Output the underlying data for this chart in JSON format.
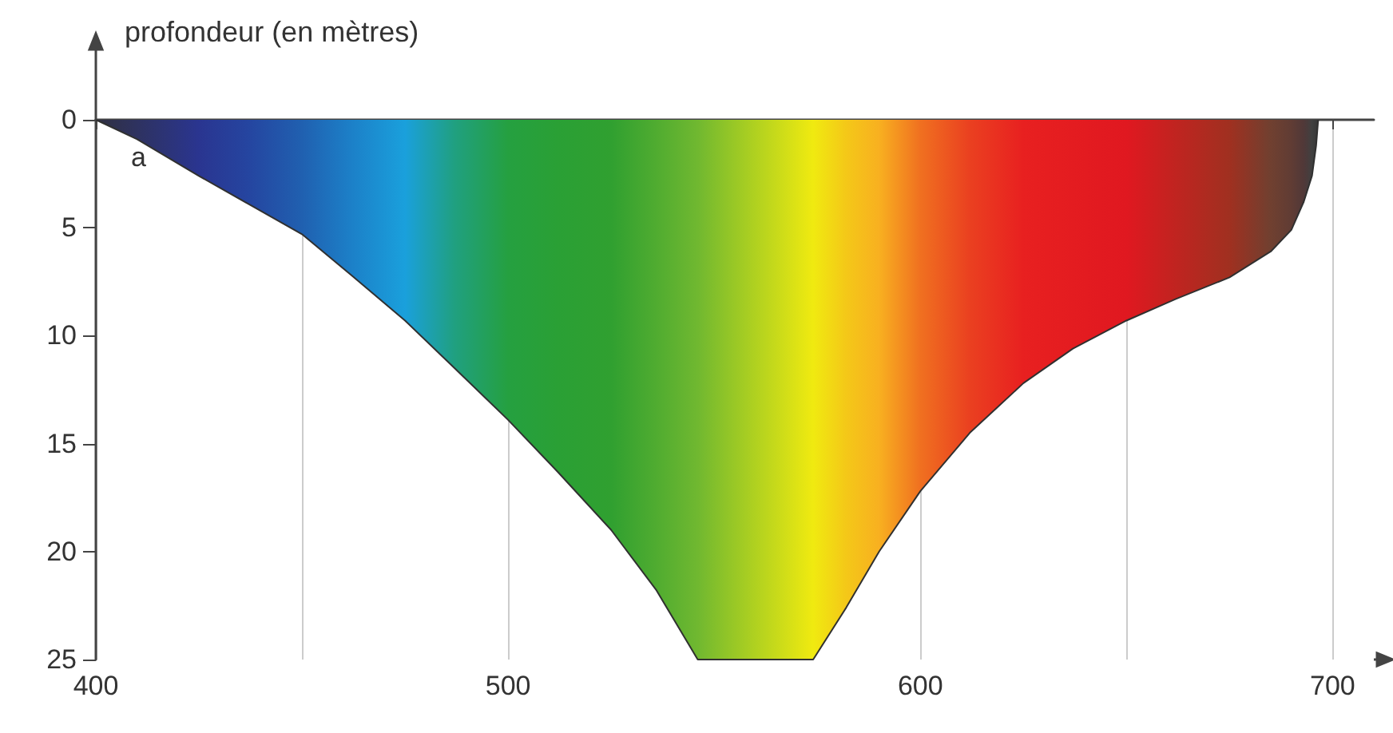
{
  "chart_data": {
    "type": "area",
    "ylabel": "profondeur (en mètres)",
    "x": [
      400,
      410,
      425,
      437,
      450,
      462,
      475,
      487,
      500,
      512,
      525,
      536,
      546,
      574,
      582,
      590,
      600,
      612,
      625,
      637,
      650,
      662,
      675,
      685,
      690,
      693,
      695,
      696,
      696.5
    ],
    "series": [
      {
        "color": "#303030",
        "values": [
          0,
          0.9,
          2.6,
          3.9,
          5.3,
          7.2,
          9.3,
          11.5,
          13.9,
          16.3,
          19,
          21.8,
          25,
          25,
          22.6,
          20,
          17.2,
          14.5,
          12.2,
          10.6,
          9.3,
          8.3,
          7.3,
          6.1,
          5.1,
          3.8,
          2.6,
          1.2,
          0
        ],
        "colors": [
          "#303040",
          "#2e3260",
          "#2a3590",
          "#2545a0",
          "#2060b0",
          "#1c80c8",
          "#1aa0dc",
          "#20a080",
          "#25a040",
          "#2aa035",
          "#30a030",
          "#50ac30",
          "#70b830",
          "#f0ea10",
          "#f4c818",
          "#f8b020",
          "#f07020",
          "#ea4020",
          "#e82020",
          "#e41c20",
          "#e01820",
          "#c02420",
          "#a03020",
          "#704030",
          "#603c34",
          "#503838",
          "#404040",
          "#3a3a3a",
          "#383838"
        ]
      }
    ],
    "xlim": [
      400,
      710
    ],
    "xticks": [
      400,
      {
        "value": 450,
        "label": null
      },
      500,
      {
        "value": 550,
        "label": null
      },
      600,
      {
        "value": 650,
        "label": null
      },
      700
    ],
    "ylim": [
      25,
      0
    ],
    "yticks": [
      0,
      5,
      10,
      15,
      20,
      25
    ],
    "grid": "x",
    "marker": "none",
    "annotations": [
      "a"
    ]
  }
}
